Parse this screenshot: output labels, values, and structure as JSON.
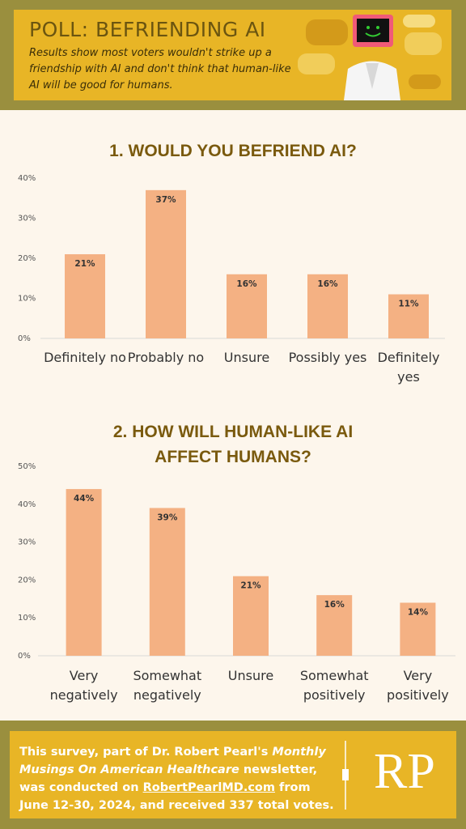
{
  "header": {
    "title": "POLL: BEFRIENDING AI",
    "subtitle": "Results show most voters wouldn't strike up a friendship with AI and don't think that human-like AI will be good for humans."
  },
  "chart_data": [
    {
      "type": "bar",
      "title": "1. WOULD YOU BEFRIEND AI?",
      "categories": [
        "Definitely no",
        "Probably no",
        "Unsure",
        "Possibly yes",
        "Definitely yes"
      ],
      "values": [
        21,
        37,
        16,
        16,
        11
      ],
      "value_labels": [
        "21%",
        "37%",
        "16%",
        "16%",
        "11%"
      ],
      "color": "#f4b183",
      "ylim": [
        0,
        40
      ],
      "yticks": [
        {
          "value": 0,
          "label": "0%"
        },
        {
          "value": 10,
          "label": "10%"
        },
        {
          "value": 20,
          "label": "20%"
        },
        {
          "value": 30,
          "label": "30%"
        },
        {
          "value": 40,
          "label": "40%"
        }
      ],
      "grid": false
    },
    {
      "type": "bar",
      "title": "2. HOW WILL HUMAN-LIKE AI AFFECT HUMANS?",
      "categories": [
        "Very negatively",
        "Somewhat negatively",
        "Unsure",
        "Somewhat positively",
        "Very positively"
      ],
      "values": [
        44,
        39,
        21,
        16,
        14
      ],
      "value_labels": [
        "44%",
        "39%",
        "21%",
        "16%",
        "14%"
      ],
      "color": "#f4b183",
      "ylim": [
        0,
        50
      ],
      "yticks": [
        {
          "value": 0,
          "label": "0%"
        },
        {
          "value": 10,
          "label": "10%"
        },
        {
          "value": 20,
          "label": "20%"
        },
        {
          "value": 30,
          "label": "30%"
        },
        {
          "value": 40,
          "label": "40%"
        },
        {
          "value": 50,
          "label": "50%"
        }
      ],
      "grid": false
    }
  ],
  "footer": {
    "segments": [
      "This survey, part of Dr. Robert Pearl's ",
      "Monthly Musings On American Healthcare",
      " newsletter, was conducted on ",
      "RobertPearlMD.com",
      " from June 12-30, 2024, and received 337 total votes."
    ],
    "logo": "RP"
  }
}
